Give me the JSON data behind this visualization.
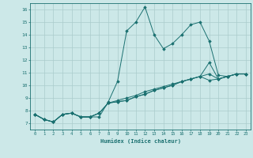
{
  "title": "",
  "xlabel": "Humidex (Indice chaleur)",
  "xlim": [
    -0.5,
    23.5
  ],
  "ylim": [
    6.5,
    16.5
  ],
  "xticks": [
    0,
    1,
    2,
    3,
    4,
    5,
    6,
    7,
    8,
    9,
    10,
    11,
    12,
    13,
    14,
    15,
    16,
    17,
    18,
    19,
    20,
    21,
    22,
    23
  ],
  "yticks": [
    7,
    8,
    9,
    10,
    11,
    12,
    13,
    14,
    15,
    16
  ],
  "bg_color": "#cce8e8",
  "line_color": "#1a7070",
  "grid_color": "#aacccc",
  "series": [
    {
      "x": [
        0,
        1,
        2,
        3,
        4,
        5,
        6,
        7,
        8,
        9,
        10,
        11,
        12,
        13,
        14,
        15,
        16,
        17,
        18,
        19,
        20,
        21,
        22,
        23
      ],
      "y": [
        7.7,
        7.3,
        7.1,
        7.7,
        7.8,
        7.5,
        7.5,
        7.5,
        8.7,
        10.3,
        14.3,
        15.0,
        16.2,
        14.0,
        12.9,
        13.3,
        14.0,
        14.8,
        15.0,
        13.5,
        10.8,
        10.7,
        10.9,
        10.9
      ]
    },
    {
      "x": [
        0,
        1,
        2,
        3,
        4,
        5,
        6,
        7,
        8,
        9,
        10,
        11,
        12,
        13,
        14,
        15,
        16,
        17,
        18,
        19,
        20,
        21,
        22,
        23
      ],
      "y": [
        7.7,
        7.3,
        7.1,
        7.7,
        7.8,
        7.5,
        7.5,
        7.8,
        8.6,
        8.7,
        8.8,
        9.1,
        9.3,
        9.6,
        9.8,
        10.0,
        10.3,
        10.5,
        10.7,
        11.8,
        10.5,
        10.7,
        10.9,
        10.9
      ]
    },
    {
      "x": [
        0,
        1,
        2,
        3,
        4,
        5,
        6,
        7,
        8,
        9,
        10,
        11,
        12,
        13,
        14,
        15,
        16,
        17,
        18,
        19,
        20,
        21,
        22,
        23
      ],
      "y": [
        7.7,
        7.3,
        7.1,
        7.7,
        7.8,
        7.5,
        7.5,
        7.8,
        8.6,
        8.7,
        8.8,
        9.1,
        9.3,
        9.6,
        9.8,
        10.0,
        10.3,
        10.5,
        10.7,
        10.4,
        10.5,
        10.7,
        10.9,
        10.9
      ]
    },
    {
      "x": [
        0,
        1,
        2,
        3,
        4,
        5,
        6,
        7,
        8,
        9,
        10,
        11,
        12,
        13,
        14,
        15,
        16,
        17,
        18,
        19,
        20,
        21,
        22,
        23
      ],
      "y": [
        7.7,
        7.3,
        7.1,
        7.7,
        7.8,
        7.5,
        7.5,
        7.8,
        8.6,
        8.8,
        9.0,
        9.2,
        9.5,
        9.7,
        9.9,
        10.1,
        10.3,
        10.5,
        10.7,
        10.9,
        10.5,
        10.7,
        10.9,
        10.9
      ]
    }
  ]
}
